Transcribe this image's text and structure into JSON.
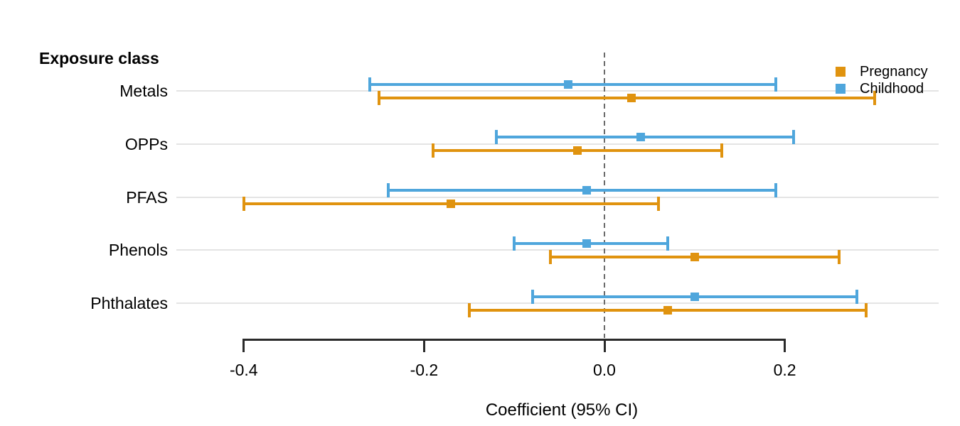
{
  "header": {
    "label": "Exposure class"
  },
  "axis": {
    "xlabel": "Coefficient (95% CI)",
    "tick_labels": [
      "-0.4",
      "-0.2",
      "0.0",
      "0.2"
    ]
  },
  "legend": {
    "items": [
      {
        "label": "Pregnancy",
        "color": "#e0930f"
      },
      {
        "label": "Childhood",
        "color": "#4fa6dc"
      }
    ]
  },
  "colors": {
    "pregnancy": "#e0930f",
    "childhood": "#4fa6dc",
    "gridline": "#e4e4e4",
    "reference_line": "#6b6b6b",
    "axis": "#2a2a2a"
  },
  "chart_data": {
    "type": "scatter",
    "subtype": "forest-plot-with-error-bars",
    "title": "",
    "xlabel": "Coefficient (95% CI)",
    "ylabel": "Exposure class",
    "categories": [
      "Metals",
      "OPPs",
      "PFAS",
      "Phenols",
      "Phthalates"
    ],
    "x_ticks": [
      -0.4,
      -0.2,
      0.0,
      0.2
    ],
    "xlim": [
      -0.475,
      0.37
    ],
    "reference_line_x": 0.0,
    "grid": "horizontal-only",
    "legend_position": "top-right-inside",
    "series": [
      {
        "name": "Pregnancy",
        "color": "#e0930f",
        "estimates": [
          0.03,
          -0.03,
          -0.17,
          0.1,
          0.07
        ],
        "ci_low": [
          -0.25,
          -0.19,
          -0.4,
          -0.06,
          -0.15
        ],
        "ci_high": [
          0.3,
          0.13,
          0.06,
          0.26,
          0.29
        ]
      },
      {
        "name": "Childhood",
        "color": "#4fa6dc",
        "estimates": [
          -0.04,
          0.04,
          -0.02,
          -0.02,
          0.1
        ],
        "ci_low": [
          -0.26,
          -0.12,
          -0.24,
          -0.1,
          -0.08
        ],
        "ci_high": [
          0.19,
          0.21,
          0.19,
          0.07,
          0.28
        ]
      }
    ]
  }
}
